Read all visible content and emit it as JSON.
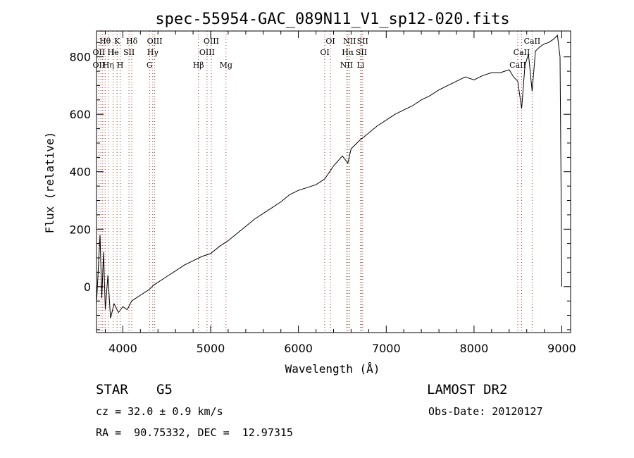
{
  "chart_data": {
    "type": "line",
    "title": "spec-55954-GAC_089N11_V1_sp12-020.fits",
    "xlabel": "Wavelength (Å)",
    "ylabel": "Flux (relative)",
    "xlim": [
      3700,
      9100
    ],
    "ylim": [
      -160,
      890
    ],
    "x_ticks": [
      4000,
      5000,
      6000,
      7000,
      8000,
      9000
    ],
    "y_ticks": [
      0,
      200,
      400,
      600,
      800
    ],
    "x_tick_labels": [
      "4000",
      "5000",
      "6000",
      "7000",
      "8000",
      "9000"
    ],
    "y_tick_labels": [
      "0",
      "200",
      "400",
      "600",
      "800"
    ],
    "grid": false,
    "legend": "none",
    "series": [
      {
        "x": [
          3700,
          3720,
          3740,
          3760,
          3780,
          3800,
          3830,
          3860,
          3900,
          3950,
          4000,
          4050,
          4100,
          4150,
          4200,
          4250,
          4300,
          4350,
          4400,
          4500,
          4600,
          4700,
          4800,
          4900,
          5000,
          5100,
          5200,
          5300,
          5400,
          5500,
          5600,
          5700,
          5800,
          5900,
          6000,
          6100,
          6200,
          6300,
          6400,
          6500,
          6563,
          6600,
          6700,
          6800,
          6900,
          7000,
          7100,
          7200,
          7300,
          7400,
          7500,
          7600,
          7700,
          7800,
          7900,
          8000,
          8100,
          8200,
          8300,
          8400,
          8450,
          8498,
          8542,
          8580,
          8620,
          8662,
          8700,
          8750,
          8800,
          8850,
          8900,
          8950,
          8980,
          8990,
          9000
        ],
        "y": [
          -60,
          60,
          180,
          -40,
          120,
          -80,
          40,
          -110,
          -60,
          -90,
          -70,
          -80,
          -50,
          -40,
          -30,
          -20,
          -10,
          5,
          15,
          35,
          55,
          75,
          90,
          105,
          115,
          140,
          160,
          185,
          210,
          235,
          255,
          275,
          295,
          320,
          335,
          345,
          355,
          375,
          420,
          455,
          430,
          480,
          510,
          535,
          560,
          580,
          600,
          615,
          630,
          650,
          665,
          685,
          700,
          715,
          730,
          720,
          735,
          745,
          745,
          755,
          730,
          715,
          620,
          770,
          810,
          680,
          820,
          835,
          845,
          850,
          860,
          875,
          800,
          400,
          0
        ]
      }
    ],
    "line_color": "#000000",
    "line_marker_color": "#b03020",
    "lines": [
      {
        "label": "Hθ",
        "x": 3798,
        "row": 1
      },
      {
        "label": "K",
        "x": 3934,
        "row": 1
      },
      {
        "label": "Hδ",
        "x": 4102,
        "row": 1
      },
      {
        "label": "OIII",
        "x": 4363,
        "row": 1
      },
      {
        "label": "OIII",
        "x": 5007,
        "row": 1
      },
      {
        "label": "OI",
        "x": 6364,
        "row": 1
      },
      {
        "label": "NII",
        "x": 6583,
        "row": 1
      },
      {
        "label": "SII",
        "x": 6731,
        "row": 1
      },
      {
        "label": "CaII",
        "x": 8662,
        "row": 1
      },
      {
        "label": "OII",
        "x": 3727,
        "row": 2
      },
      {
        "label": "He",
        "x": 3889,
        "row": 2
      },
      {
        "label": "I",
        "x": 3889,
        "row": 2
      },
      {
        "label": "SII",
        "x": 4070,
        "row": 2
      },
      {
        "label": "Hγ",
        "x": 4340,
        "row": 2
      },
      {
        "label": "OIII",
        "x": 4959,
        "row": 2
      },
      {
        "label": "OI",
        "x": 6300,
        "row": 2
      },
      {
        "label": "Hα",
        "x": 6563,
        "row": 2
      },
      {
        "label": "SII",
        "x": 6717,
        "row": 2
      },
      {
        "label": "CaII",
        "x": 8542,
        "row": 2
      },
      {
        "label": "OII",
        "x": 3727,
        "row": 3
      },
      {
        "label": "Hη",
        "x": 3835,
        "row": 3
      },
      {
        "label": "H",
        "x": 3969,
        "row": 3
      },
      {
        "label": "G",
        "x": 4304,
        "row": 3
      },
      {
        "label": "Hβ",
        "x": 4861,
        "row": 3
      },
      {
        "label": "Mg",
        "x": 5175,
        "row": 3
      },
      {
        "label": "NII",
        "x": 6548,
        "row": 3
      },
      {
        "label": "Li",
        "x": 6708,
        "row": 3
      },
      {
        "label": "CaII",
        "x": 8498,
        "row": 3
      }
    ],
    "line_marker_x": [
      3727,
      3750,
      3771,
      3798,
      3835,
      3889,
      3934,
      3969,
      4070,
      4102,
      4304,
      4340,
      4363,
      4861,
      4959,
      5007,
      5175,
      6300,
      6364,
      6548,
      6563,
      6583,
      6708,
      6717,
      6731,
      8498,
      8542,
      8662
    ]
  },
  "info": {
    "object_class": "STAR",
    "subclass": "G5",
    "survey": "LAMOST DR2",
    "cz": "cz = 32.0 ± 0.9 km/s",
    "obs_date": "Obs-Date: 20120127",
    "coords": "RA =  90.75332, DEC =  12.97315"
  }
}
